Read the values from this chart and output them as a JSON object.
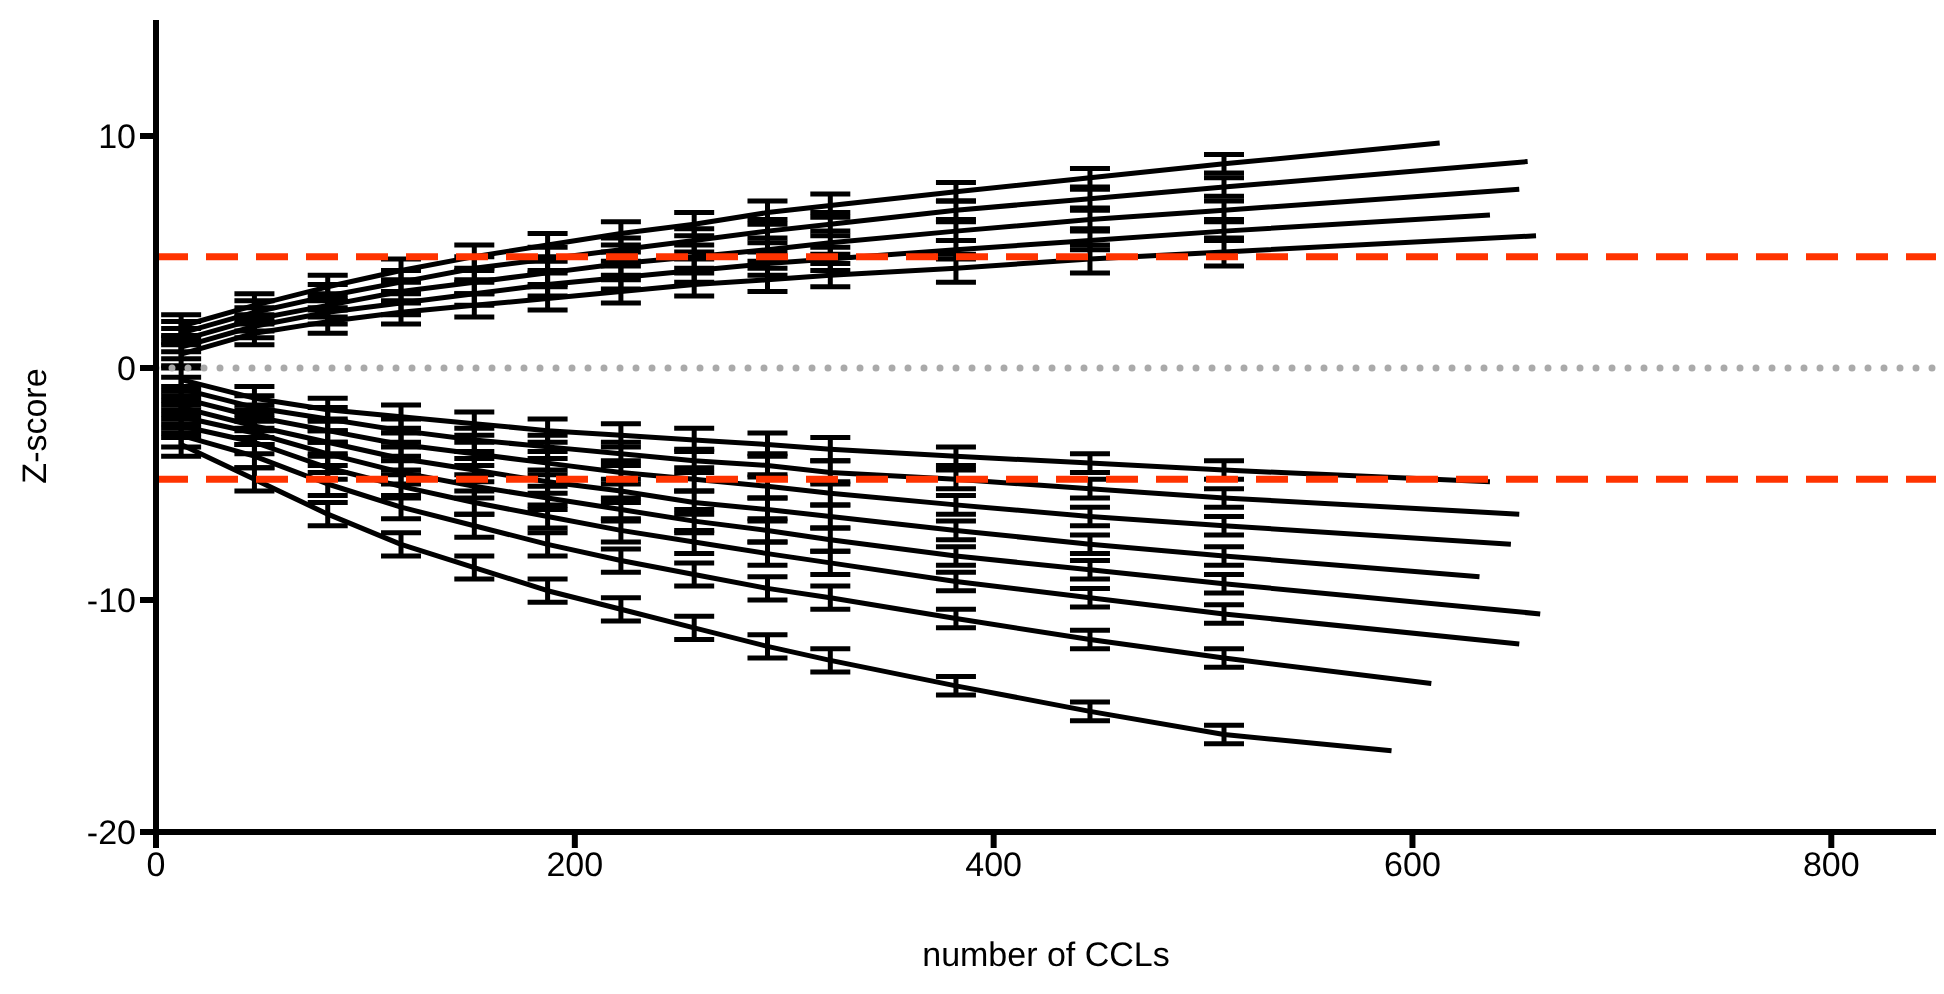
{
  "chart_data": {
    "type": "line",
    "xlabel": "number of CCLs",
    "ylabel": "Z-score",
    "xlim": [
      0,
      850
    ],
    "xticks": [
      0,
      200,
      400,
      600,
      800
    ],
    "ylim": [
      -20,
      15
    ],
    "yticks": [
      -20,
      -10,
      0,
      10
    ],
    "marker": "none",
    "line_style": "solid",
    "ref_lines": [
      {
        "axis": "y",
        "value": 4.8,
        "color": "#ff3300",
        "line_style": "dashed"
      },
      {
        "axis": "y",
        "value": -4.8,
        "color": "#ff3300",
        "line_style": "dashed"
      },
      {
        "axis": "y",
        "value": 0,
        "color": "#aaaaaa",
        "line_style": "dotted"
      }
    ],
    "series": [
      {
        "color": "#000000",
        "x": [
          12,
          47,
          82,
          117,
          152,
          187,
          222,
          257,
          292,
          322,
          382,
          446,
          510,
          613
        ],
        "values": [
          1.8,
          2.7,
          3.5,
          4.2,
          4.8,
          5.3,
          5.8,
          6.2,
          6.7,
          7.0,
          7.6,
          8.2,
          8.8,
          9.7
        ],
        "errors": [
          0.5,
          0.5,
          0.5,
          0.5,
          0.5,
          0.5,
          0.5,
          0.5,
          0.5,
          0.5,
          0.4,
          0.4,
          0.4,
          null
        ]
      },
      {
        "color": "#000000",
        "x": [
          12,
          47,
          82,
          117,
          152,
          187,
          222,
          257,
          292,
          322,
          382,
          446,
          510,
          655
        ],
        "values": [
          1.5,
          2.4,
          3.1,
          3.7,
          4.3,
          4.7,
          5.1,
          5.5,
          5.9,
          6.2,
          6.8,
          7.3,
          7.8,
          8.9
        ],
        "errors": [
          0.5,
          0.5,
          0.5,
          0.5,
          0.5,
          0.5,
          0.5,
          0.5,
          0.5,
          0.5,
          0.4,
          0.4,
          0.4,
          null
        ]
      },
      {
        "color": "#000000",
        "x": [
          12,
          47,
          82,
          117,
          152,
          187,
          222,
          257,
          292,
          322,
          382,
          446,
          510,
          651
        ],
        "values": [
          1.2,
          2.1,
          2.7,
          3.3,
          3.7,
          4.1,
          4.5,
          4.8,
          5.1,
          5.4,
          5.9,
          6.4,
          6.8,
          7.7
        ],
        "errors": [
          0.5,
          0.5,
          0.5,
          0.5,
          0.5,
          0.5,
          0.5,
          0.5,
          0.5,
          0.5,
          0.4,
          0.4,
          0.4,
          null
        ]
      },
      {
        "color": "#000000",
        "x": [
          12,
          47,
          82,
          117,
          152,
          187,
          222,
          257,
          292,
          322,
          382,
          446,
          510,
          637
        ],
        "values": [
          0.9,
          1.8,
          2.4,
          2.8,
          3.2,
          3.6,
          3.9,
          4.2,
          4.5,
          4.7,
          5.1,
          5.5,
          5.9,
          6.6
        ],
        "errors": [
          0.5,
          0.5,
          0.5,
          0.5,
          0.5,
          0.5,
          0.5,
          0.5,
          0.5,
          0.5,
          0.4,
          0.4,
          0.4,
          null
        ]
      },
      {
        "color": "#000000",
        "x": [
          12,
          47,
          82,
          117,
          152,
          187,
          222,
          257,
          292,
          322,
          382,
          446,
          510,
          659
        ],
        "values": [
          0.6,
          1.5,
          2.0,
          2.4,
          2.7,
          3.0,
          3.3,
          3.6,
          3.8,
          4.0,
          4.3,
          4.7,
          5.0,
          5.7
        ],
        "errors": [
          0.5,
          0.5,
          0.5,
          0.5,
          0.5,
          0.5,
          0.5,
          0.5,
          0.5,
          0.5,
          0.6,
          0.6,
          0.6,
          null
        ]
      },
      {
        "color": "#000000",
        "x": [
          12,
          47,
          82,
          117,
          152,
          187,
          222,
          257,
          292,
          322,
          382,
          446,
          510,
          637
        ],
        "values": [
          -0.5,
          -1.3,
          -1.8,
          -2.1,
          -2.4,
          -2.7,
          -2.9,
          -3.1,
          -3.3,
          -3.5,
          -3.8,
          -4.1,
          -4.4,
          -4.9
        ],
        "errors": [
          0.5,
          0.5,
          0.5,
          0.5,
          0.5,
          0.5,
          0.5,
          0.5,
          0.5,
          0.5,
          0.4,
          0.4,
          0.4,
          null
        ]
      },
      {
        "color": "#000000",
        "x": [
          12,
          47,
          82,
          117,
          152,
          187,
          222,
          257,
          292,
          322,
          382,
          446,
          510,
          651
        ],
        "values": [
          -0.9,
          -1.7,
          -2.2,
          -2.7,
          -3.1,
          -3.4,
          -3.7,
          -4.0,
          -4.2,
          -4.5,
          -4.8,
          -5.2,
          -5.6,
          -6.3
        ],
        "errors": [
          0.5,
          0.5,
          0.5,
          0.5,
          0.5,
          0.5,
          0.5,
          0.5,
          0.5,
          0.5,
          0.4,
          0.4,
          0.4,
          null
        ]
      },
      {
        "color": "#000000",
        "x": [
          12,
          47,
          82,
          117,
          152,
          187,
          222,
          257,
          292,
          322,
          382,
          446,
          510,
          647
        ],
        "values": [
          -1.3,
          -2.1,
          -2.7,
          -3.3,
          -3.7,
          -4.1,
          -4.5,
          -4.8,
          -5.1,
          -5.4,
          -5.9,
          -6.4,
          -6.8,
          -7.6
        ],
        "errors": [
          0.5,
          0.5,
          0.5,
          0.5,
          0.5,
          0.5,
          0.5,
          0.5,
          0.5,
          0.5,
          0.4,
          0.4,
          0.4,
          null
        ]
      },
      {
        "color": "#000000",
        "x": [
          12,
          47,
          82,
          117,
          152,
          187,
          222,
          257,
          292,
          322,
          382,
          446,
          510,
          632
        ],
        "values": [
          -1.7,
          -2.5,
          -3.2,
          -3.9,
          -4.4,
          -4.9,
          -5.3,
          -5.8,
          -6.1,
          -6.4,
          -7.0,
          -7.6,
          -8.1,
          -9.0
        ],
        "errors": [
          0.5,
          0.5,
          0.5,
          0.5,
          0.5,
          0.5,
          0.5,
          0.5,
          0.5,
          0.5,
          0.4,
          0.4,
          0.4,
          null
        ]
      },
      {
        "color": "#000000",
        "x": [
          12,
          47,
          82,
          117,
          152,
          187,
          222,
          257,
          292,
          322,
          382,
          446,
          510,
          661
        ],
        "values": [
          -2.1,
          -2.8,
          -3.7,
          -4.5,
          -5.1,
          -5.6,
          -6.1,
          -6.6,
          -7.0,
          -7.4,
          -8.1,
          -8.7,
          -9.3,
          -10.6
        ],
        "errors": [
          0.5,
          0.5,
          0.5,
          0.5,
          0.5,
          0.5,
          0.5,
          0.5,
          0.5,
          0.5,
          0.4,
          0.4,
          0.4,
          null
        ]
      },
      {
        "color": "#000000",
        "x": [
          12,
          47,
          82,
          117,
          152,
          187,
          222,
          257,
          292,
          322,
          382,
          446,
          510,
          651
        ],
        "values": [
          -2.5,
          -3.2,
          -4.3,
          -5.1,
          -5.8,
          -6.4,
          -7.0,
          -7.5,
          -8.0,
          -8.4,
          -9.2,
          -9.9,
          -10.6,
          -11.9
        ],
        "errors": [
          0.5,
          0.5,
          0.5,
          0.5,
          0.5,
          0.5,
          0.5,
          0.5,
          0.5,
          0.5,
          0.4,
          0.4,
          0.4,
          null
        ]
      },
      {
        "color": "#000000",
        "x": [
          12,
          47,
          82,
          117,
          152,
          187,
          222,
          257,
          292,
          322,
          382,
          446,
          510,
          609
        ],
        "values": [
          -2.9,
          -3.8,
          -5.0,
          -6.0,
          -6.8,
          -7.6,
          -8.3,
          -8.9,
          -9.5,
          -9.9,
          -10.8,
          -11.7,
          -12.5,
          -13.6
        ],
        "errors": [
          0.5,
          0.5,
          0.5,
          0.5,
          0.5,
          0.5,
          0.5,
          0.5,
          0.5,
          0.5,
          0.4,
          0.4,
          0.4,
          null
        ]
      },
      {
        "color": "#000000",
        "x": [
          12,
          47,
          82,
          117,
          152,
          187,
          222,
          257,
          292,
          322,
          382,
          446,
          510,
          590
        ],
        "values": [
          -3.3,
          -4.8,
          -6.3,
          -7.6,
          -8.6,
          -9.6,
          -10.4,
          -11.2,
          -12.0,
          -12.6,
          -13.7,
          -14.8,
          -15.8,
          -16.5
        ],
        "errors": [
          0.5,
          0.5,
          0.5,
          0.5,
          0.5,
          0.5,
          0.5,
          0.5,
          0.5,
          0.5,
          0.4,
          0.4,
          0.4,
          null
        ]
      }
    ]
  }
}
